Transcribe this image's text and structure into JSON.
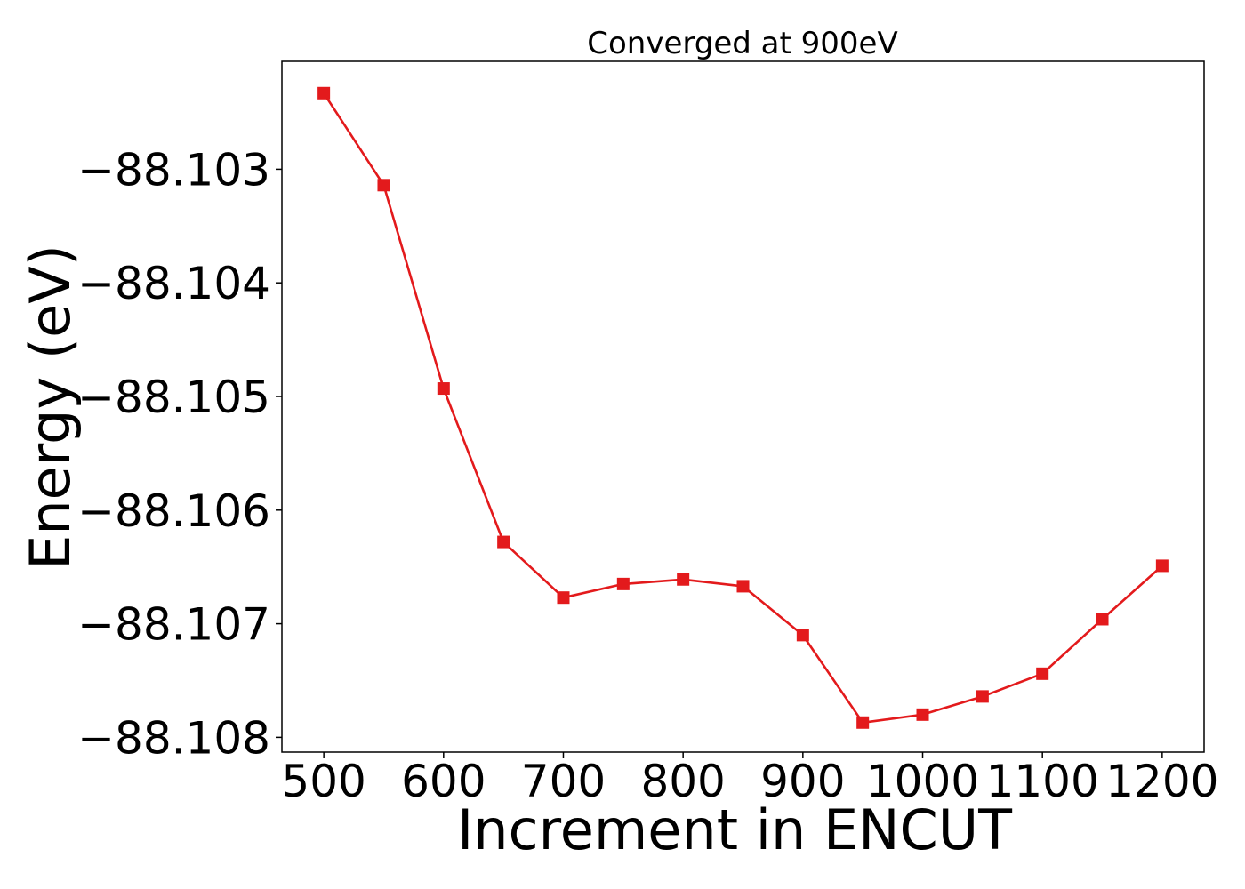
{
  "chart_data": {
    "type": "line",
    "title": "Converged at 900eV",
    "xlabel": "Increment in ENCUT",
    "ylabel": "Energy (eV)",
    "x": [
      500,
      550,
      600,
      650,
      700,
      750,
      800,
      850,
      900,
      950,
      1000,
      1050,
      1100,
      1150,
      1200
    ],
    "series": [
      {
        "values": [
          -88.10233,
          -88.10314,
          -88.10493,
          -88.10628,
          -88.10677,
          -88.10665,
          -88.10661,
          -88.10667,
          -88.1071,
          -88.10787,
          -88.1078,
          -88.10764,
          -88.10744,
          -88.10696,
          -88.10649
        ],
        "color": "#e31a1c",
        "marker": "square"
      }
    ],
    "xticks": [
      500,
      600,
      700,
      800,
      900,
      1000,
      1100,
      1200
    ],
    "xtick_labels": [
      "500",
      "600",
      "700",
      "800",
      "900",
      "1000",
      "1100",
      "1200"
    ],
    "yticks": [
      -88.103,
      -88.104,
      -88.105,
      -88.106,
      -88.107,
      -88.108
    ],
    "ytick_labels": [
      "−88.103",
      "−88.104",
      "−88.105",
      "−88.106",
      "−88.107",
      "−88.108"
    ],
    "xlim": [
      465,
      1235
    ],
    "ylim": [
      -88.10813,
      -88.10205
    ],
    "grid": false,
    "legend": "none"
  }
}
